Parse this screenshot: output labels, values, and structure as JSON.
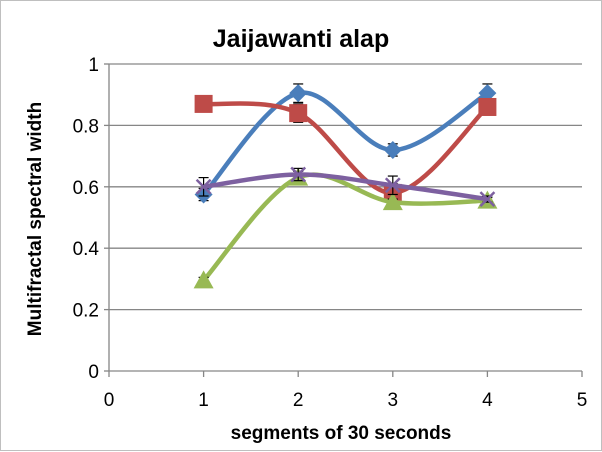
{
  "chart_data": {
    "type": "line",
    "title": "Jaijawanti alap",
    "xlabel": "segments of 30 seconds",
    "ylabel": "Multifractal spectral width",
    "xlim": [
      0,
      5
    ],
    "ylim": [
      0,
      1
    ],
    "x_ticks": [
      "0",
      "1",
      "2",
      "3",
      "4",
      "5"
    ],
    "y_ticks": [
      "0",
      "0.2",
      "0.4",
      "0.6",
      "0.8",
      "1"
    ],
    "grid": "horizontal",
    "legend": "none",
    "x": [
      1,
      2,
      3,
      4
    ],
    "series": [
      {
        "color": "#4a7ebb",
        "marker": "diamond",
        "values": [
          0.575,
          0.905,
          0.72,
          0.905
        ],
        "error": [
          0.02,
          0.03,
          0.02,
          0.03
        ]
      },
      {
        "color": "#be4b48",
        "marker": "square",
        "values": [
          0.87,
          0.84,
          0.58,
          0.86
        ],
        "error": [
          0.02,
          0.03,
          0.03,
          0.02
        ]
      },
      {
        "color": "#98b954",
        "marker": "triangle",
        "values": [
          0.295,
          0.63,
          0.55,
          0.555
        ],
        "error": [
          0.01,
          0.02,
          0.01,
          0.01
        ]
      },
      {
        "color": "#7d60a0",
        "marker": "x",
        "values": [
          0.6,
          0.64,
          0.605,
          0.56
        ],
        "error": [
          0.03,
          0.02,
          0.03,
          0.01
        ]
      }
    ]
  }
}
